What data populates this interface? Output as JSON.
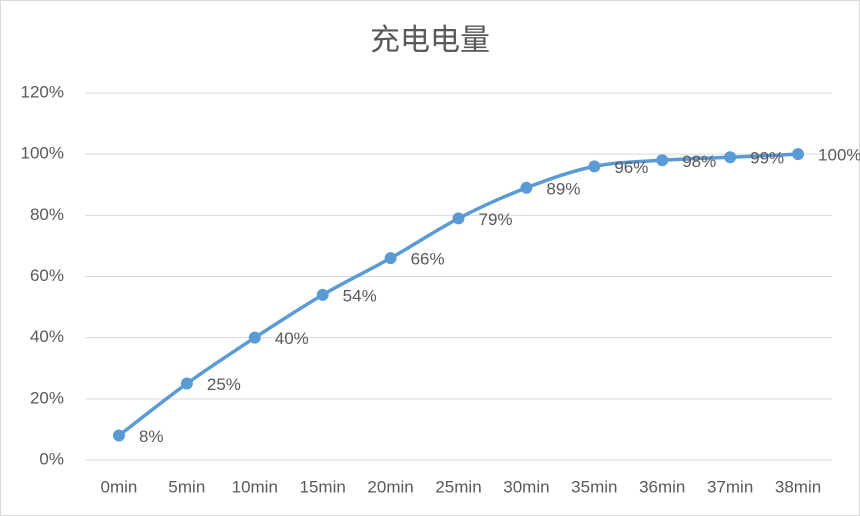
{
  "chart_data": {
    "type": "line",
    "title": "充电电量",
    "categories": [
      "0min",
      "5min",
      "10min",
      "15min",
      "20min",
      "25min",
      "30min",
      "35min",
      "36min",
      "37min",
      "38min"
    ],
    "values": [
      8,
      25,
      40,
      54,
      66,
      79,
      89,
      96,
      98,
      99,
      100
    ],
    "value_labels": [
      "8%",
      "25%",
      "40%",
      "54%",
      "66%",
      "79%",
      "89%",
      "96%",
      "98%",
      "99%",
      "100%"
    ],
    "color": "#5b9bd5",
    "ylim": [
      0,
      120
    ],
    "yticks": [
      {
        "value": 0,
        "label": "0%"
      },
      {
        "value": 20,
        "label": "20%"
      },
      {
        "value": 40,
        "label": "40%"
      },
      {
        "value": 60,
        "label": "60%"
      },
      {
        "value": 80,
        "label": "80%"
      },
      {
        "value": 100,
        "label": "100%"
      },
      {
        "value": 120,
        "label": "120%"
      }
    ],
    "grid": true
  }
}
